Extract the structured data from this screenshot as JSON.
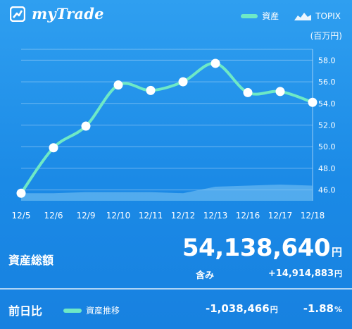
{
  "app": {
    "name": "myTrade"
  },
  "legend": {
    "assets": "資産",
    "index": "TOPIX",
    "unit": "(百万円)"
  },
  "colors": {
    "asset_line": "#6ee9c6",
    "topix_area": "#7fc7f4",
    "background": "#1b8ae6"
  },
  "chart_data": {
    "type": "line",
    "categories": [
      "12/5",
      "12/6",
      "12/9",
      "12/10",
      "12/11",
      "12/12",
      "12/13",
      "12/16",
      "12/17",
      "12/18"
    ],
    "series": [
      {
        "name": "資産",
        "values": [
          45.7,
          49.9,
          51.9,
          55.7,
          55.2,
          56.0,
          57.7,
          55.0,
          55.1,
          54.1
        ]
      },
      {
        "name": "TOPIX",
        "values": [
          45.7,
          45.7,
          45.8,
          45.8,
          45.8,
          45.7,
          46.3,
          46.4,
          46.5,
          46.4
        ]
      }
    ],
    "yticks": [
      "46.0",
      "48.0",
      "50.0",
      "52.0",
      "54.0",
      "56.0",
      "58.0"
    ],
    "ylim": [
      45.0,
      59.0
    ],
    "grid": true
  },
  "summary": {
    "label": "資産総額",
    "total_value": "54,138,640",
    "total_unit": "円",
    "gain_label": "含み",
    "gain_value": "+14,914,883",
    "gain_unit": "円"
  },
  "daily": {
    "label": "前日比",
    "legend_label": "資産推移",
    "change_value": "-1,038,466",
    "change_unit": "円",
    "change_pct": "-1.88",
    "pct_unit": "%"
  }
}
